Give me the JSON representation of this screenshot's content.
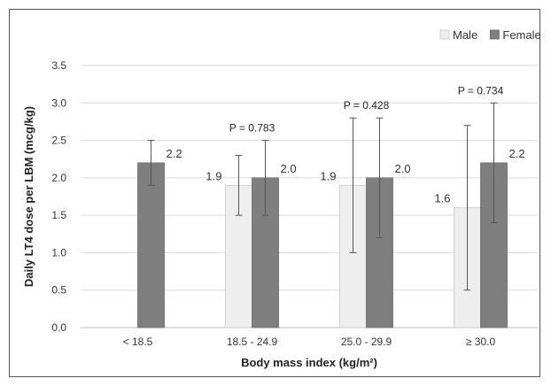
{
  "chart_data": {
    "type": "bar",
    "categories": [
      "< 18.5",
      "18.5 - 24.9",
      "25.0 - 29.9",
      "≥ 30.0"
    ],
    "series": [
      {
        "name": "Male",
        "color": "#eeeeee",
        "values": [
          null,
          1.9,
          1.9,
          1.6
        ],
        "value_labels": [
          null,
          "1.9",
          "1.9",
          "1.6"
        ],
        "error_low": [
          null,
          1.5,
          1.0,
          0.5
        ],
        "error_high": [
          null,
          2.3,
          2.8,
          2.7
        ]
      },
      {
        "name": "Female",
        "color": "#7f7f7f",
        "values": [
          2.2,
          2.0,
          2.0,
          2.2
        ],
        "value_labels": [
          "2.2",
          "2.0",
          "2.0",
          "2.2"
        ],
        "error_low": [
          1.9,
          1.5,
          1.2,
          1.4
        ],
        "error_high": [
          2.5,
          2.5,
          2.8,
          3.0
        ]
      }
    ],
    "p_values": [
      null,
      "P = 0.783",
      "P = 0.428",
      "P = 0.734"
    ],
    "xlabel": "Body mass index (kg/m²)",
    "ylabel": "Daily LT4 dose per LBM (mcg/kg)",
    "ylim": [
      0,
      3.5
    ],
    "yticks": [
      "0.0",
      "0.5",
      "1.0",
      "1.5",
      "2.0",
      "2.5",
      "3.0",
      "3.5"
    ],
    "grid": true,
    "legend_position": "top-right"
  }
}
